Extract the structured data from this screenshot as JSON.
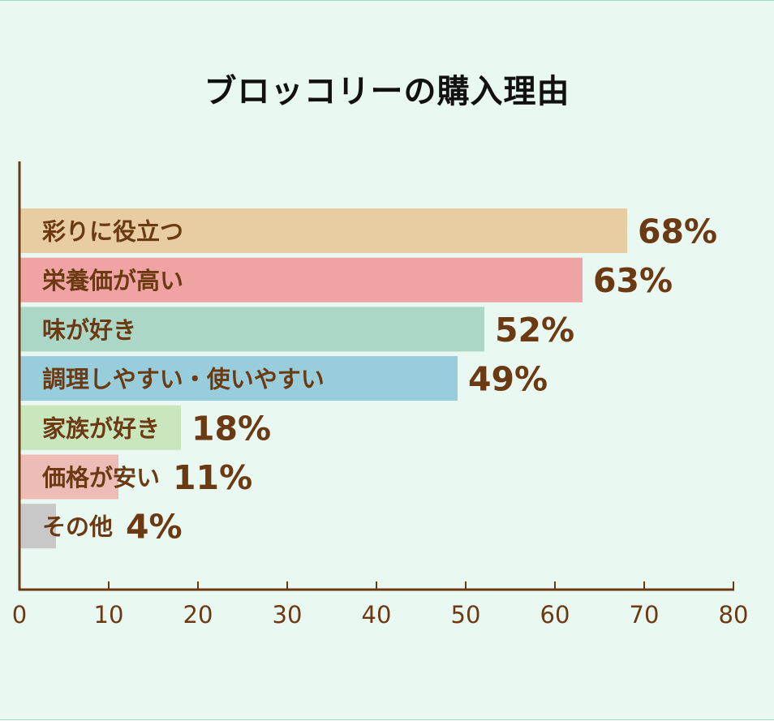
{
  "chart_data": {
    "type": "bar",
    "orientation": "horizontal",
    "title": "ブロッコリーの購入理由",
    "xlabel": "",
    "ylabel": "",
    "xlim": [
      0,
      80
    ],
    "x_ticks": [
      "0",
      "10",
      "20",
      "30",
      "40",
      "50",
      "60",
      "70",
      "80"
    ],
    "categories": [
      "彩りに役立つ",
      "栄養価が高い",
      "味が好き",
      "調理しやすい・使いやすい",
      "家族が好き",
      "価格が安い",
      "その他"
    ],
    "values": [
      68,
      63,
      52,
      49,
      18,
      11,
      4
    ],
    "value_labels": [
      "68%",
      "63%",
      "52%",
      "49%",
      "18%",
      "11%",
      "4%"
    ],
    "colors": [
      "#e8cda2",
      "#efa3a3",
      "#acd6c5",
      "#98cddc",
      "#c9e6bd",
      "#eebcb6",
      "#c8c8c8"
    ],
    "grid": false,
    "legend": "none"
  }
}
